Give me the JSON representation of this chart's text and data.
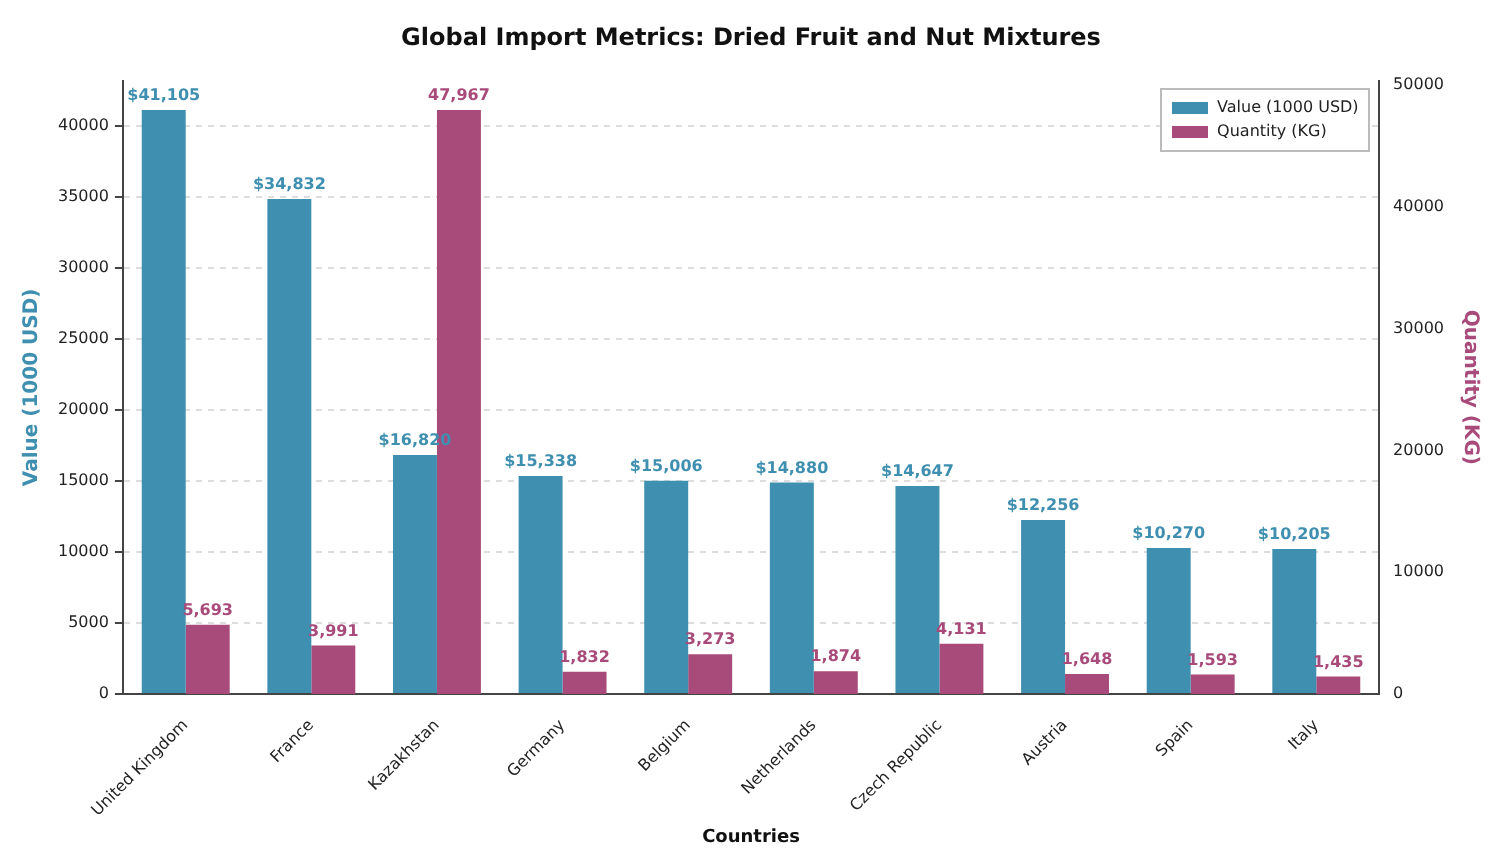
{
  "chart_data": {
    "type": "bar",
    "title": "Global Import Metrics: Dried Fruit and Nut Mixtures",
    "xlabel": "Countries",
    "ylabel": "Value (1000 USD)",
    "y2label": "Quantity (KG)",
    "categories": [
      "United Kingdom",
      "France",
      "Kazakhstan",
      "Germany",
      "Belgium",
      "Netherlands",
      "Czech Republic",
      "Austria",
      "Spain",
      "Italy"
    ],
    "series": [
      {
        "name": "Value (1000 USD)",
        "color": "#3f8fb0",
        "values": [
          41105,
          34832,
          16820,
          15338,
          15006,
          14880,
          14647,
          12256,
          10270,
          10205
        ],
        "value_labels": [
          "$41,105",
          "$34,832",
          "$16,820",
          "$15,338",
          "$15,006",
          "$14,880",
          "$14,647",
          "$12,256",
          "$10,270",
          "$10,205"
        ]
      },
      {
        "name": "Quantity (KG)",
        "color": "#a84a7a",
        "axis": "y2",
        "values": [
          5693,
          3991,
          47967,
          1832,
          3273,
          1874,
          4131,
          1648,
          1593,
          1435
        ],
        "value_labels": [
          "5,693",
          "3,991",
          "47,967",
          "1,832",
          "3,273",
          "1,874",
          "4,131",
          "1,648",
          "1,593",
          "1,435"
        ]
      }
    ],
    "ylim": [
      0,
      43160
    ],
    "yticks": [
      0,
      5000,
      10000,
      15000,
      20000,
      25000,
      30000,
      35000,
      40000
    ],
    "y2lim": [
      0,
      50365
    ],
    "y2ticks": [
      0,
      10000,
      20000,
      30000,
      40000,
      50000
    ],
    "grid": "y",
    "legend": "top right"
  }
}
